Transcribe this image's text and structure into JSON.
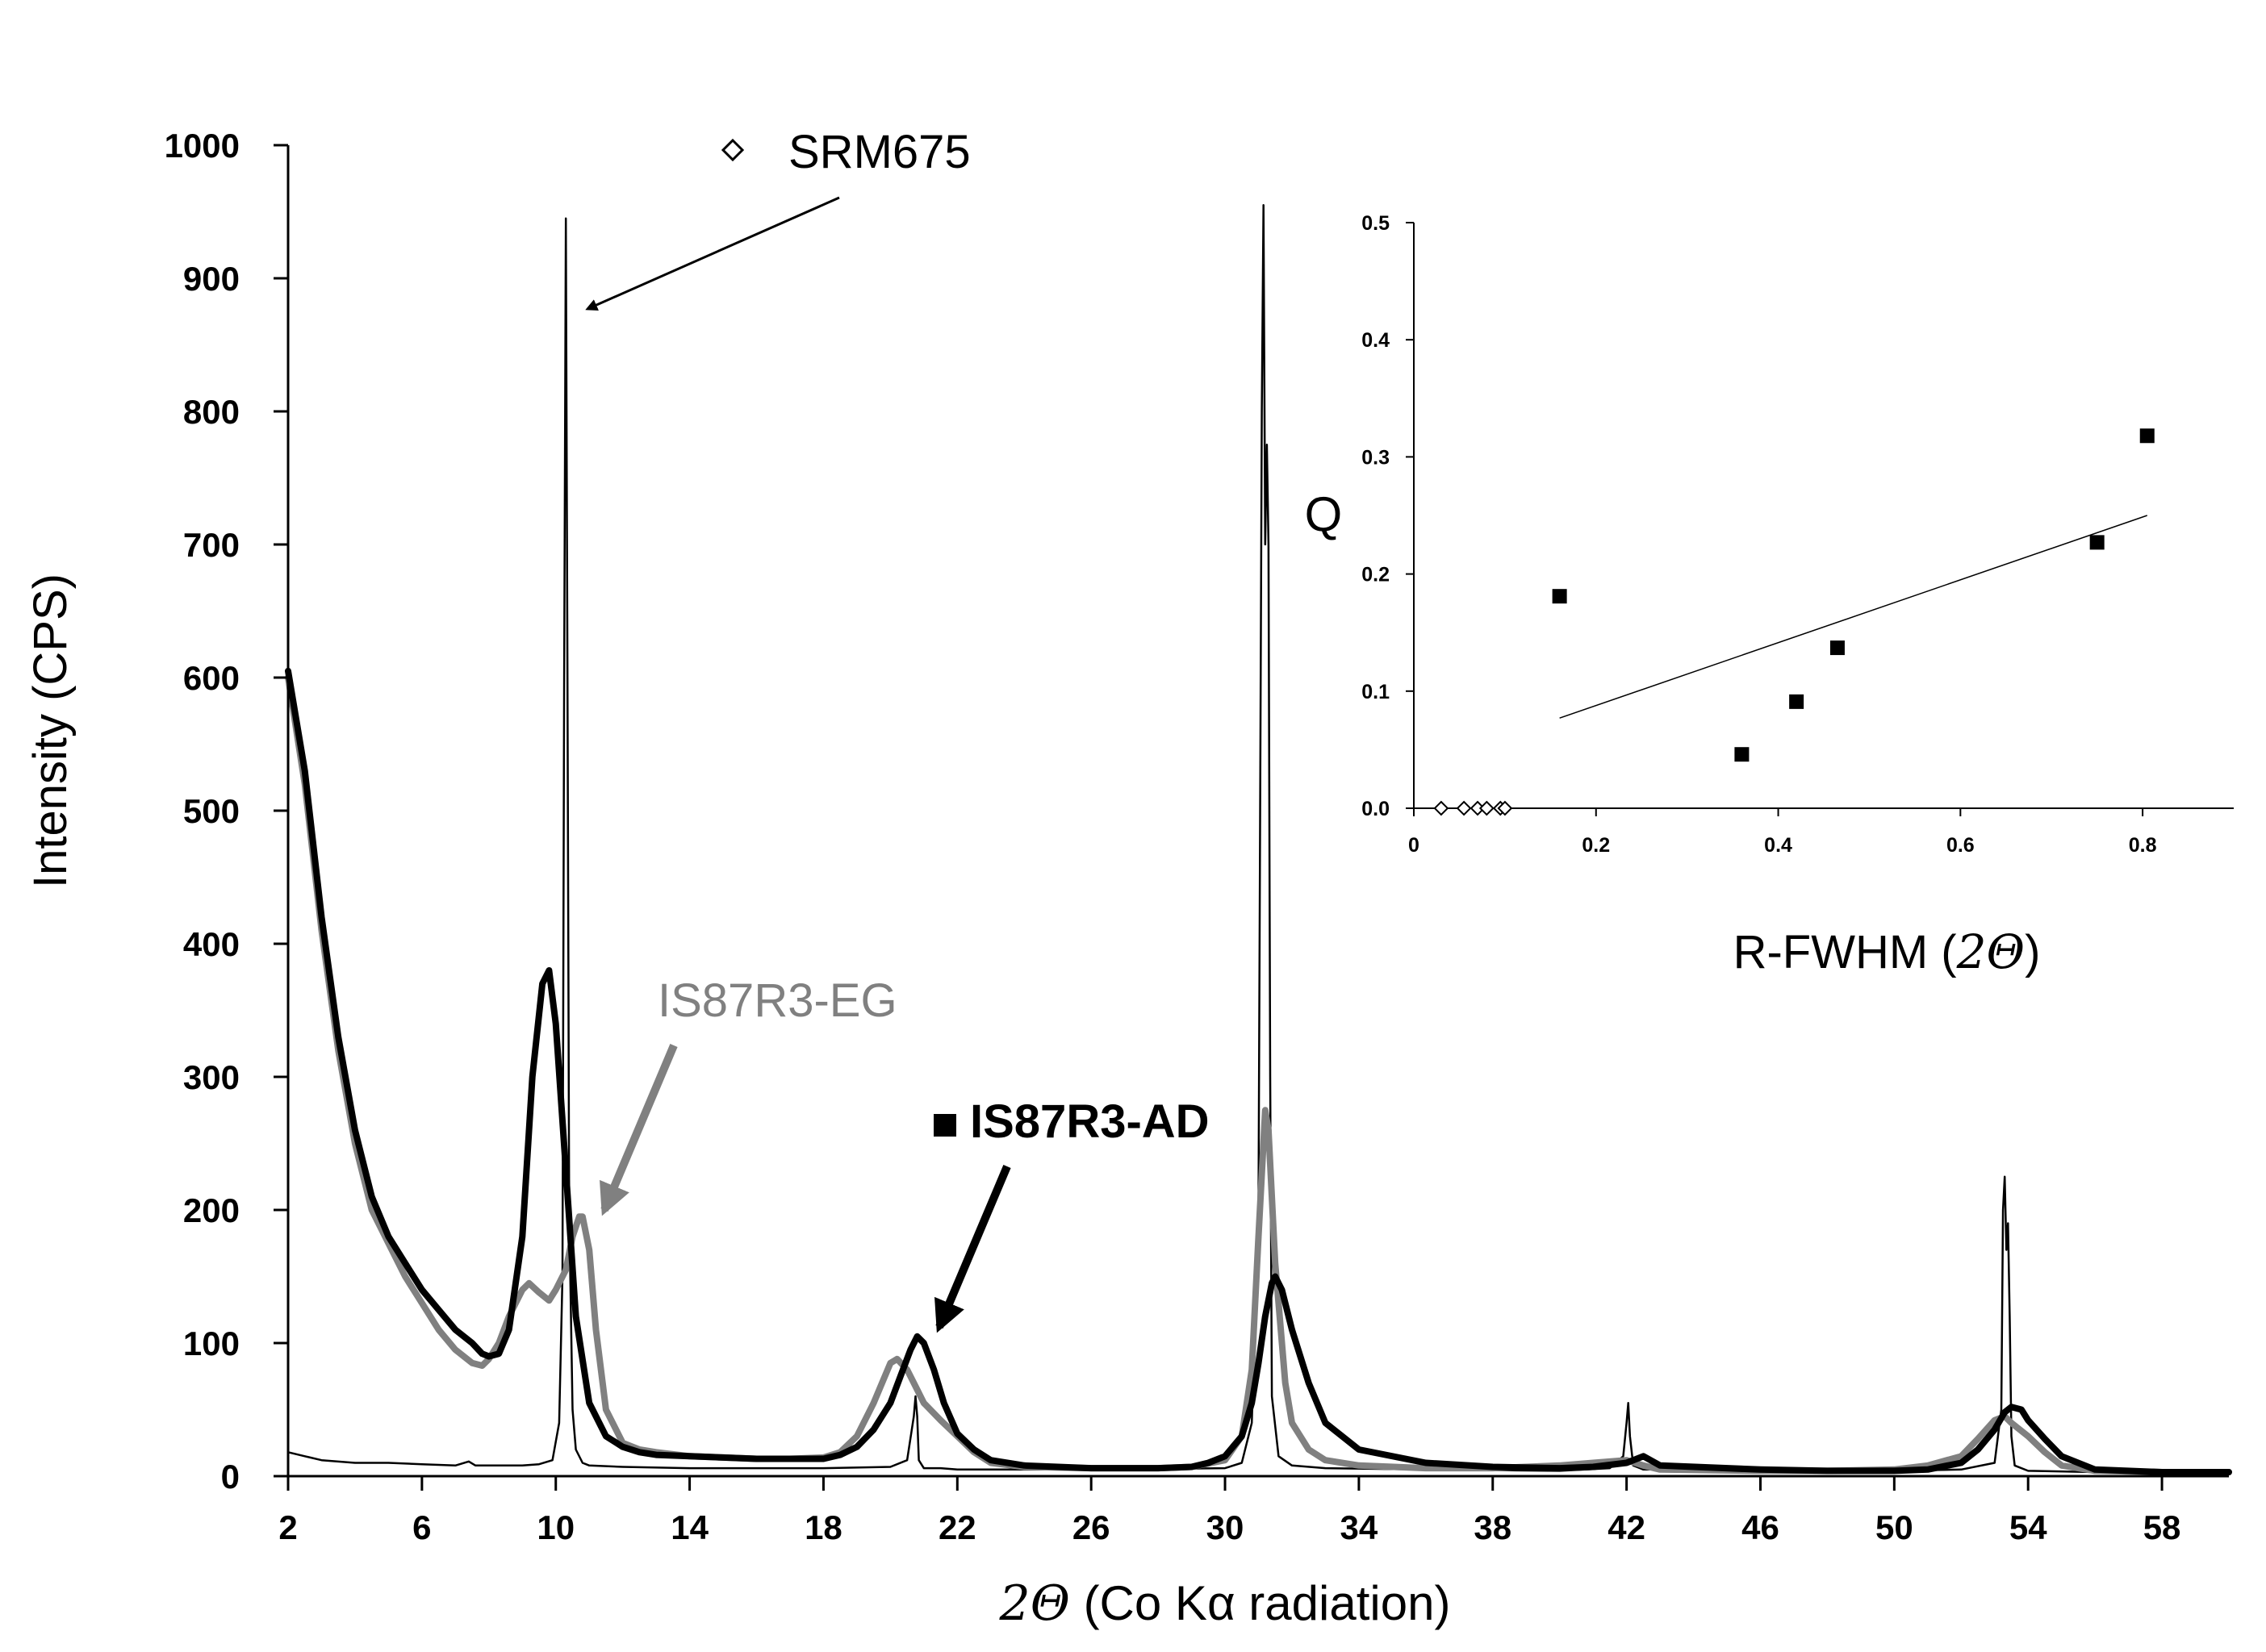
{
  "chart_data": [
    {
      "type": "line",
      "title": "",
      "xlabel": {
        "symbol": "2Θ",
        "rest": " (Co Kα radiation)"
      },
      "ylabel": "Intensity (CPS)",
      "xlim": [
        2,
        60
      ],
      "ylim": [
        0,
        1000
      ],
      "x_ticks": [
        "2",
        "6",
        "10",
        "14",
        "18",
        "22",
        "26",
        "30",
        "34",
        "38",
        "42",
        "46",
        "50",
        "54",
        "58"
      ],
      "y_ticks": [
        "0",
        "100",
        "200",
        "300",
        "400",
        "500",
        "600",
        "700",
        "800",
        "900",
        "1000"
      ],
      "grid": false,
      "legend": "none",
      "annotations": [
        {
          "label": "SRM675",
          "marker": "open-diamond",
          "color": "#000000",
          "arrow_to": [
            10.3,
            880
          ]
        },
        {
          "label": "IS87R3-EG",
          "color": "#808080",
          "arrow_to": [
            11.3,
            195
          ]
        },
        {
          "label": "IS87R3-AD",
          "marker": "filled-square",
          "color": "#000000",
          "bold": true,
          "arrow_to": [
            21.0,
            105
          ]
        }
      ],
      "series": [
        {
          "name": "SRM675",
          "color": "#000000",
          "stroke": "thin",
          "x": [
            2.0,
            2.5,
            3,
            4,
            5,
            6,
            7,
            7.4,
            7.6,
            8,
            9,
            9.5,
            9.9,
            10.1,
            10.2,
            10.25,
            10.3,
            10.35,
            10.4,
            10.5,
            10.6,
            10.8,
            11,
            12,
            14,
            18,
            20,
            20.5,
            20.7,
            20.75,
            20.8,
            20.85,
            21,
            21.5,
            22,
            26,
            30,
            30.5,
            30.8,
            31.0,
            31.1,
            31.15,
            31.2,
            31.25,
            31.3,
            31.35,
            31.4,
            31.6,
            32,
            33,
            36,
            40,
            41.5,
            41.9,
            42.0,
            42.05,
            42.1,
            42.2,
            42.5,
            43,
            43.8,
            44,
            46,
            50,
            52,
            53,
            53.2,
            53.25,
            53.3,
            53.35,
            53.4,
            53.45,
            53.5,
            53.6,
            54,
            56,
            60
          ],
          "y": [
            18,
            15,
            12,
            10,
            10,
            9,
            8,
            11,
            8,
            8,
            8,
            9,
            12,
            40,
            150,
            600,
            945,
            600,
            200,
            50,
            20,
            10,
            8,
            7,
            6,
            6,
            7,
            12,
            45,
            60,
            45,
            12,
            6,
            6,
            5,
            5,
            6,
            10,
            40,
            200,
            800,
            955,
            700,
            775,
            700,
            300,
            60,
            15,
            8,
            6,
            5,
            4,
            6,
            15,
            40,
            55,
            30,
            8,
            5,
            5,
            7,
            4,
            4,
            4,
            5,
            10,
            50,
            200,
            225,
            170,
            190,
            120,
            30,
            8,
            4,
            3,
            3
          ]
        },
        {
          "name": "IS87R3-EG",
          "color": "#808080",
          "stroke": "thick",
          "x": [
            2,
            2.5,
            3,
            3.5,
            4,
            4.5,
            5,
            5.5,
            6,
            6.5,
            7,
            7.5,
            7.8,
            8,
            8.3,
            8.6,
            9,
            9.2,
            9.5,
            9.8,
            10,
            10.3,
            10.5,
            10.7,
            10.8,
            11,
            11.2,
            11.5,
            12,
            12.5,
            13,
            14,
            15,
            16,
            17,
            18,
            18.5,
            19,
            19.5,
            20,
            20.2,
            20.5,
            20.8,
            21,
            21.5,
            22,
            22.5,
            23,
            24,
            26,
            28,
            29,
            30,
            30.5,
            30.8,
            31.0,
            31.2,
            31.3,
            31.5,
            31.8,
            32,
            32.5,
            33,
            34,
            36,
            38,
            40,
            41,
            42,
            42.5,
            43,
            46,
            48,
            50,
            51,
            52,
            52.5,
            53,
            53.3,
            53.5,
            54,
            54.5,
            55,
            56,
            58,
            60
          ],
          "y": [
            600,
            520,
            410,
            320,
            250,
            200,
            175,
            150,
            130,
            110,
            95,
            85,
            83,
            88,
            100,
            120,
            140,
            145,
            138,
            132,
            140,
            155,
            180,
            195,
            195,
            170,
            110,
            50,
            25,
            20,
            18,
            15,
            14,
            13,
            13,
            14,
            18,
            30,
            55,
            85,
            88,
            80,
            65,
            55,
            42,
            30,
            18,
            10,
            7,
            6,
            6,
            7,
            12,
            30,
            80,
            180,
            275,
            260,
            160,
            70,
            40,
            20,
            12,
            8,
            6,
            6,
            8,
            10,
            12,
            8,
            5,
            4,
            4,
            5,
            8,
            15,
            28,
            42,
            45,
            40,
            30,
            18,
            8,
            4,
            3,
            3
          ]
        },
        {
          "name": "IS87R3-AD",
          "color": "#000000",
          "stroke": "thick",
          "x": [
            2,
            2.5,
            3,
            3.5,
            4,
            4.5,
            5,
            5.5,
            6,
            6.5,
            7,
            7.5,
            7.8,
            8,
            8.3,
            8.6,
            9,
            9.3,
            9.6,
            9.8,
            10,
            10.3,
            10.6,
            11,
            11.5,
            12,
            12.5,
            13,
            14,
            15,
            16,
            17,
            18,
            18.5,
            19,
            19.5,
            20,
            20.3,
            20.6,
            20.8,
            21,
            21.3,
            21.6,
            22,
            22.5,
            23,
            24,
            26,
            28,
            29,
            29.5,
            30,
            30.5,
            30.8,
            31,
            31.2,
            31.4,
            31.5,
            31.7,
            32,
            32.5,
            33,
            34,
            36,
            38,
            40,
            41,
            42,
            42.5,
            43,
            46,
            48,
            50,
            51,
            52,
            52.5,
            53,
            53.3,
            53.5,
            53.8,
            54,
            54.5,
            55,
            56,
            58,
            60
          ],
          "y": [
            605,
            530,
            420,
            330,
            260,
            210,
            180,
            160,
            140,
            125,
            110,
            100,
            92,
            90,
            92,
            110,
            180,
            300,
            370,
            380,
            340,
            230,
            120,
            55,
            30,
            22,
            18,
            16,
            15,
            14,
            13,
            13,
            13,
            16,
            22,
            35,
            55,
            75,
            95,
            105,
            100,
            80,
            55,
            32,
            20,
            12,
            8,
            6,
            6,
            7,
            10,
            15,
            30,
            55,
            85,
            120,
            145,
            150,
            140,
            110,
            70,
            40,
            20,
            10,
            7,
            6,
            7,
            10,
            15,
            8,
            5,
            4,
            4,
            5,
            10,
            20,
            35,
            48,
            52,
            50,
            42,
            28,
            15,
            5,
            3,
            3
          ]
        }
      ]
    },
    {
      "type": "scatter",
      "title": "",
      "xlabel": {
        "rest_before": "R-FWHM (",
        "symbol": "2Θ",
        "rest_after": ")"
      },
      "ylabel": "Q",
      "xlim": [
        0,
        0.9
      ],
      "ylim": [
        0,
        0.5
      ],
      "x_ticks": [
        {
          "v": 0,
          "label": "0"
        },
        {
          "v": 0.2,
          "label": "0.2"
        },
        {
          "v": 0.4,
          "label": "0.4"
        },
        {
          "v": 0.6,
          "label": "0.6"
        },
        {
          "v": 0.8,
          "label": "0.8"
        }
      ],
      "y_ticks": [
        {
          "v": 0,
          "label": "0.0"
        },
        {
          "v": 0.1,
          "label": "0.1"
        },
        {
          "v": 0.2,
          "label": "0.2"
        },
        {
          "v": 0.3,
          "label": "0.3"
        },
        {
          "v": 0.4,
          "label": "0.4"
        },
        {
          "v": 0.5,
          "label": "0.5"
        }
      ],
      "grid": false,
      "series": [
        {
          "name": "SRM675",
          "marker": "open-diamond",
          "x": [
            0.03,
            0.055,
            0.07,
            0.08,
            0.095,
            0.1
          ],
          "y": [
            0,
            0,
            0,
            0,
            0,
            0
          ]
        },
        {
          "name": "IS87R3-AD",
          "marker": "filled-square",
          "x": [
            0.16,
            0.36,
            0.42,
            0.465,
            0.75,
            0.805
          ],
          "y": [
            0.181,
            0.046,
            0.091,
            0.137,
            0.227,
            0.318
          ]
        }
      ],
      "trendline": {
        "x": [
          0.16,
          0.805
        ],
        "y": [
          0.077,
          0.25
        ]
      }
    }
  ]
}
